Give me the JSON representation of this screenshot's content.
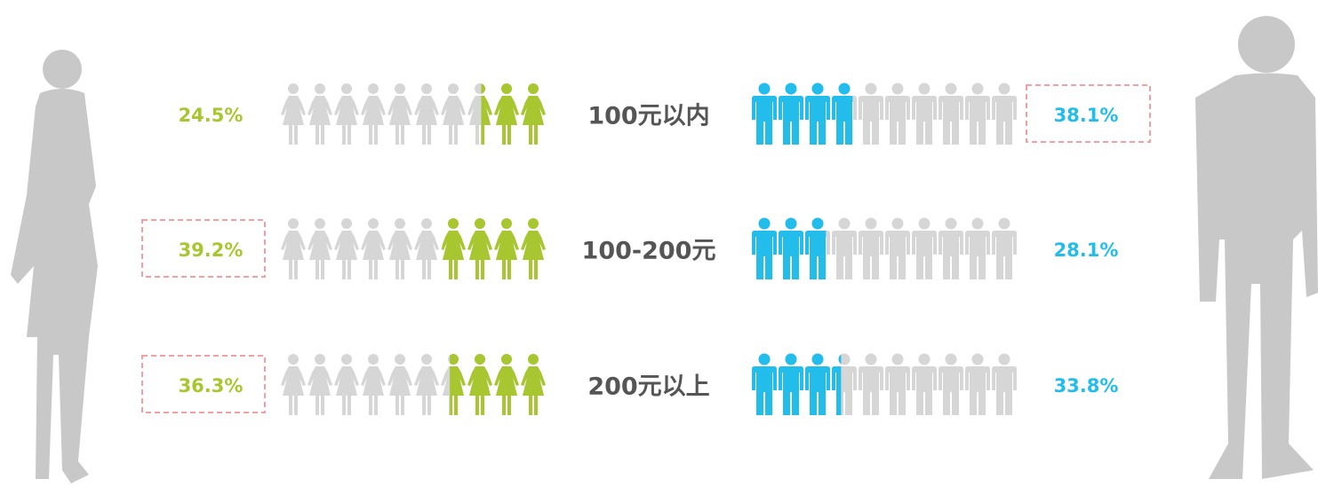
{
  "chart_data": {
    "type": "pictogram",
    "categories": [
      "100元以内",
      "100-200元",
      "200元以上"
    ],
    "xlim": [
      0,
      100
    ],
    "series": [
      {
        "name": null,
        "color": "#a8c62f",
        "values": [
          24.5,
          39.2,
          36.3
        ],
        "value_labels": [
          "24.5%",
          "39.2%",
          "36.3%"
        ]
      },
      {
        "name": null,
        "color": "#22bdea",
        "values": [
          38.1,
          28.1,
          33.8
        ],
        "value_labels": [
          "38.1%",
          "28.1%",
          "33.8%"
        ]
      }
    ]
  }
}
